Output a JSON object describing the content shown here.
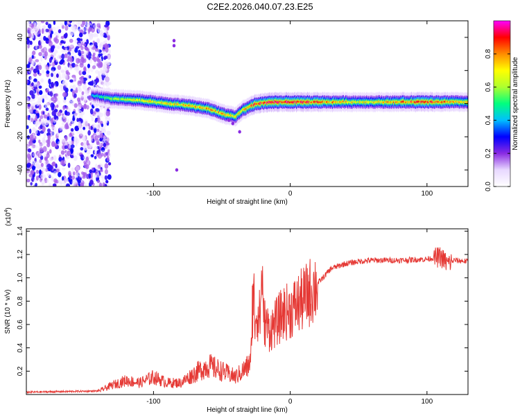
{
  "title": "C2E2.2026.040.07.23.E25",
  "chart_data": [
    {
      "type": "heatmap",
      "title": "C2E2.2026.040.07.23.E25",
      "xlabel": "Height of straight line (km)",
      "ylabel": "Frequency (Hz)",
      "xlim": [
        -193,
        130
      ],
      "ylim": [
        -50,
        50
      ],
      "x_ticks": [
        -100,
        0,
        100
      ],
      "y_ticks": [
        -40,
        -20,
        0,
        20,
        40
      ],
      "colorbar": {
        "label": "Normalized spectral amplitude",
        "range": [
          0,
          1
        ],
        "ticks": [
          0.0,
          0.2,
          0.4,
          0.6,
          0.8
        ],
        "colormap": [
          "#ffffff",
          "#e8d8ff",
          "#8a2be2",
          "#0000ff",
          "#00bfff",
          "#00ff7f",
          "#adff2f",
          "#ffff00",
          "#ff8c00",
          "#ff0000",
          "#ff00ff"
        ]
      },
      "ridge": {
        "x": [
          -145,
          -130,
          -110,
          -90,
          -75,
          -60,
          -50,
          -40,
          -35,
          -25,
          -10,
          0,
          20,
          50,
          80,
          100,
          130
        ],
        "freq": [
          5,
          3,
          2,
          0,
          -1,
          -3,
          -6,
          -8,
          -4,
          0,
          1,
          1,
          1,
          1,
          1,
          1,
          1
        ],
        "amplitude": [
          0.4,
          0.6,
          0.7,
          0.7,
          0.75,
          0.8,
          0.8,
          0.7,
          0.75,
          0.9,
          0.95,
          0.9,
          0.85,
          0.7,
          0.8,
          0.95,
          0.7
        ]
      },
      "noise_region_x": [
        -193,
        -132
      ]
    },
    {
      "type": "line",
      "xlabel": "Height of straight line (km)",
      "ylabel": "SNR (10 * v/v)",
      "y_multiplier": "(x10^4)",
      "y_multiplier_base": "(x10",
      "y_multiplier_exp": "4",
      "y_multiplier_close": ")",
      "xlim": [
        -193,
        130
      ],
      "ylim": [
        0,
        1.42
      ],
      "x_ticks": [
        -100,
        0,
        100
      ],
      "y_ticks": [
        0.2,
        0.4,
        0.6,
        0.8,
        1.0,
        1.2,
        1.4
      ],
      "color": "#e53935",
      "x": [
        -193,
        -140,
        -130,
        -120,
        -110,
        -100,
        -90,
        -80,
        -70,
        -60,
        -50,
        -40,
        -30,
        -25,
        -20,
        -15,
        -10,
        -5,
        0,
        10,
        20,
        30,
        40,
        50,
        60,
        80,
        100,
        110,
        115,
        120,
        130
      ],
      "y": [
        0.02,
        0.03,
        0.08,
        0.12,
        0.1,
        0.15,
        0.1,
        0.1,
        0.18,
        0.25,
        0.2,
        0.15,
        0.25,
        0.7,
        0.65,
        0.55,
        0.62,
        0.7,
        0.72,
        0.82,
        0.95,
        1.08,
        1.12,
        1.14,
        1.15,
        1.15,
        1.16,
        1.18,
        1.12,
        1.15,
        1.14
      ]
    }
  ]
}
